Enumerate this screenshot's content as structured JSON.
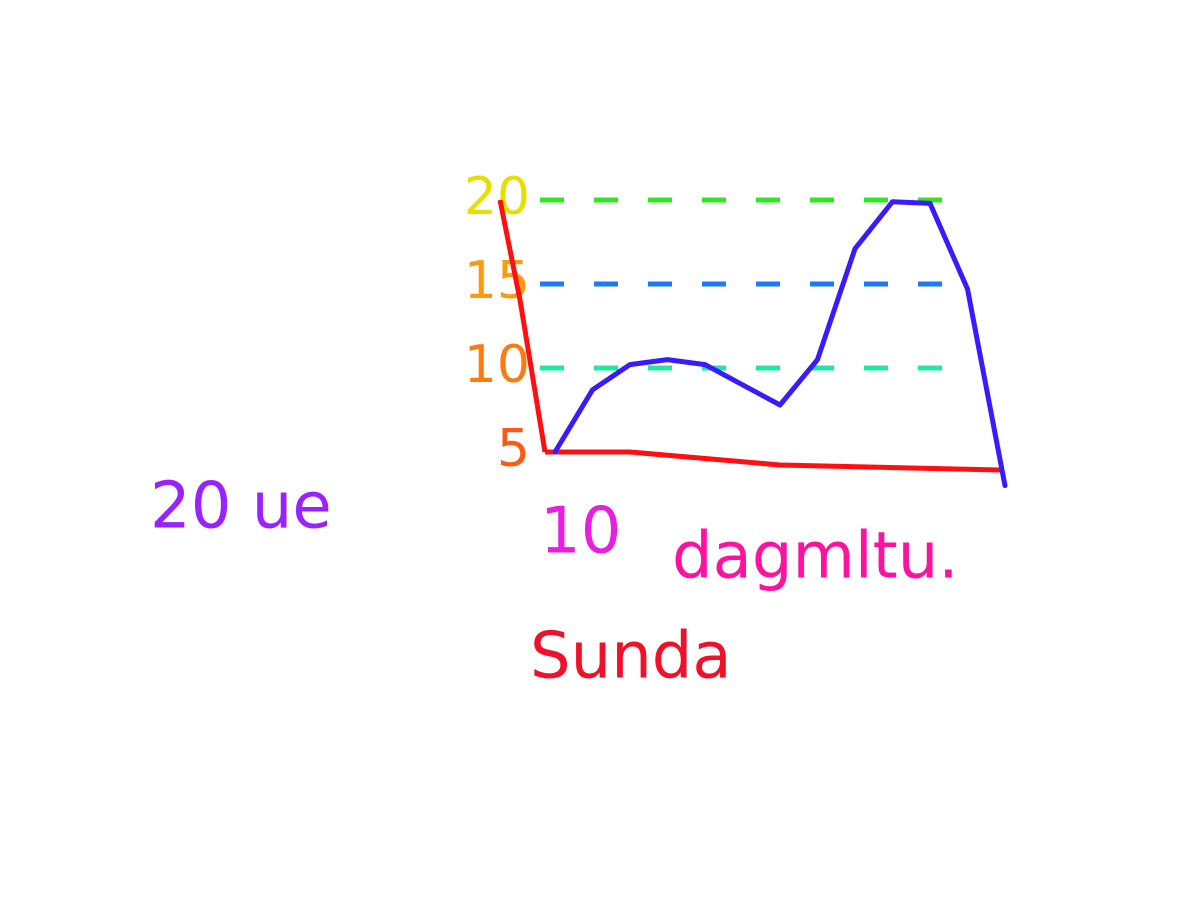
{
  "chart_data": {
    "type": "line",
    "categories": [
      null,
      null,
      null,
      null,
      null,
      null,
      null,
      null,
      null,
      null,
      null,
      null,
      null
    ],
    "series": [
      {
        "color": "#3a1aff",
        "values": [
          5,
          8.7,
          10.2,
          10.5,
          10.2,
          9.0,
          7.8,
          10.5,
          17.1,
          19.9,
          19.8,
          14.7,
          3.0
        ]
      }
    ],
    "ylim": [
      5,
      20
    ],
    "yticks": [
      5,
      10,
      15,
      20
    ],
    "grid": true,
    "annotations": [
      "20 ue",
      "10",
      "dagmltu.",
      "Sunda"
    ]
  }
}
